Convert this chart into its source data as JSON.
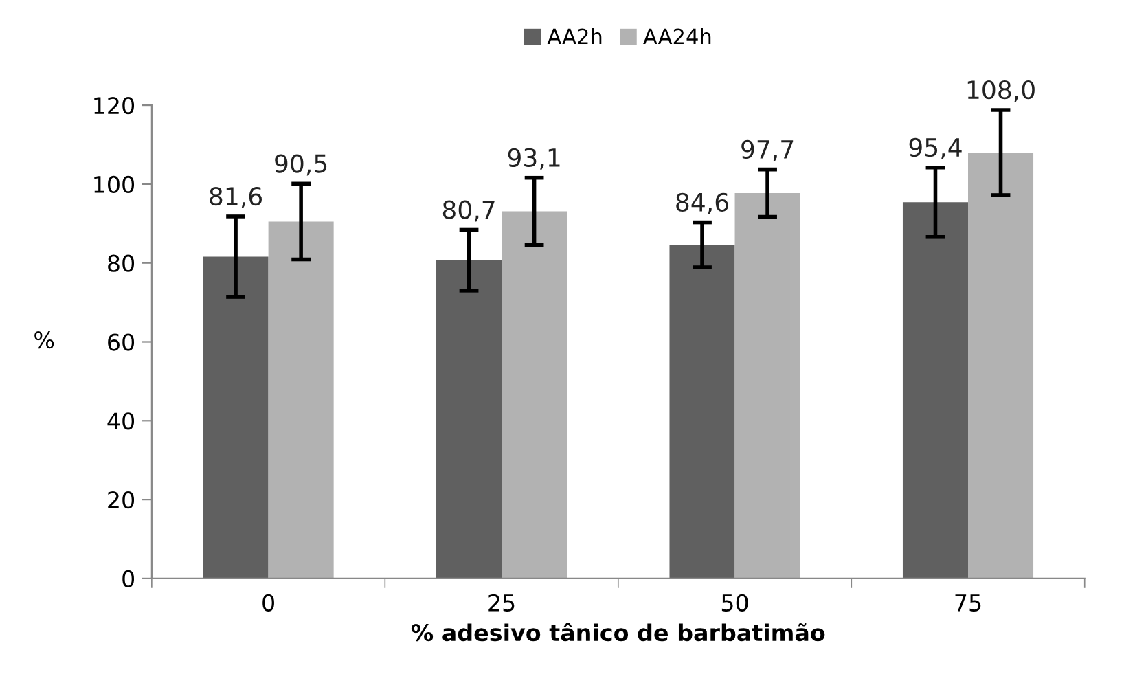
{
  "chart_data": {
    "type": "bar",
    "xlabel": "% adesivo tânico de barbatimão",
    "ylabel": "%",
    "categories": [
      "0",
      "25",
      "50",
      "75"
    ],
    "series": [
      {
        "name": "AA2h",
        "color": "#606060",
        "values": [
          81.6,
          80.7,
          84.6,
          95.4
        ],
        "errors": [
          10.2,
          7.7,
          5.7,
          8.8
        ],
        "value_labels": [
          "81,6",
          "80,7",
          "84,6",
          "95,4"
        ]
      },
      {
        "name": "AA24h",
        "color": "#b2b2b2",
        "values": [
          90.5,
          93.1,
          97.7,
          108.0
        ],
        "errors": [
          9.6,
          8.5,
          6.0,
          10.8
        ],
        "value_labels": [
          "90,5",
          "93,1",
          "97,7",
          "108,0"
        ]
      }
    ],
    "ylim": [
      0,
      120
    ],
    "yticks": [
      0,
      20,
      40,
      60,
      80,
      100,
      120
    ],
    "grid": false,
    "legend": "top"
  }
}
